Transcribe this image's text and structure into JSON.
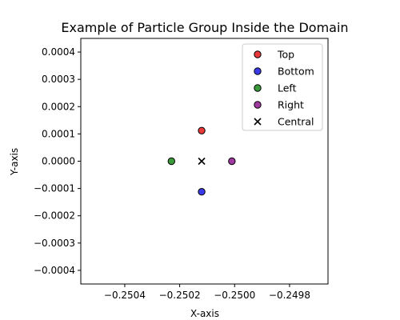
{
  "chart_data": {
    "type": "scatter",
    "title": "Example of Particle Group Inside the Domain",
    "xlabel": "X-axis",
    "ylabel": "Y-axis",
    "xlim": [
      -0.25056,
      -0.24966
    ],
    "ylim": [
      -0.00045,
      0.00045
    ],
    "x_ticks": [
      -0.2504,
      -0.2502,
      -0.25,
      -0.2498
    ],
    "x_tick_labels": [
      "−0.2504",
      "−0.2502",
      "−0.2500",
      "−0.2498"
    ],
    "y_ticks": [
      0.0004,
      0.0003,
      0.0002,
      0.0001,
      0.0,
      -0.0001,
      -0.0002,
      -0.0003,
      -0.0004
    ],
    "y_tick_labels": [
      "0.0004",
      "0.0003",
      "0.0002",
      "0.0001",
      "0.0000",
      "−0.0001",
      "−0.0002",
      "−0.0003",
      "−0.0004"
    ],
    "grid": false,
    "legend_placement": "top-right",
    "series": [
      {
        "name": "Top",
        "marker": "circle",
        "color": "#e83a3a",
        "points": [
          {
            "x": -0.25012,
            "y": 0.000112
          }
        ]
      },
      {
        "name": "Bottom",
        "marker": "circle",
        "color": "#3a3ae8",
        "points": [
          {
            "x": -0.25012,
            "y": -0.000112
          }
        ]
      },
      {
        "name": "Left",
        "marker": "circle",
        "color": "#3a9a3a",
        "points": [
          {
            "x": -0.25023,
            "y": 0.0
          }
        ]
      },
      {
        "name": "Right",
        "marker": "circle",
        "color": "#a03aa0",
        "points": [
          {
            "x": -0.25001,
            "y": 0.0
          }
        ]
      },
      {
        "name": "Central",
        "marker": "x",
        "color": "#000000",
        "points": [
          {
            "x": -0.25012,
            "y": 0.0
          }
        ]
      }
    ]
  }
}
